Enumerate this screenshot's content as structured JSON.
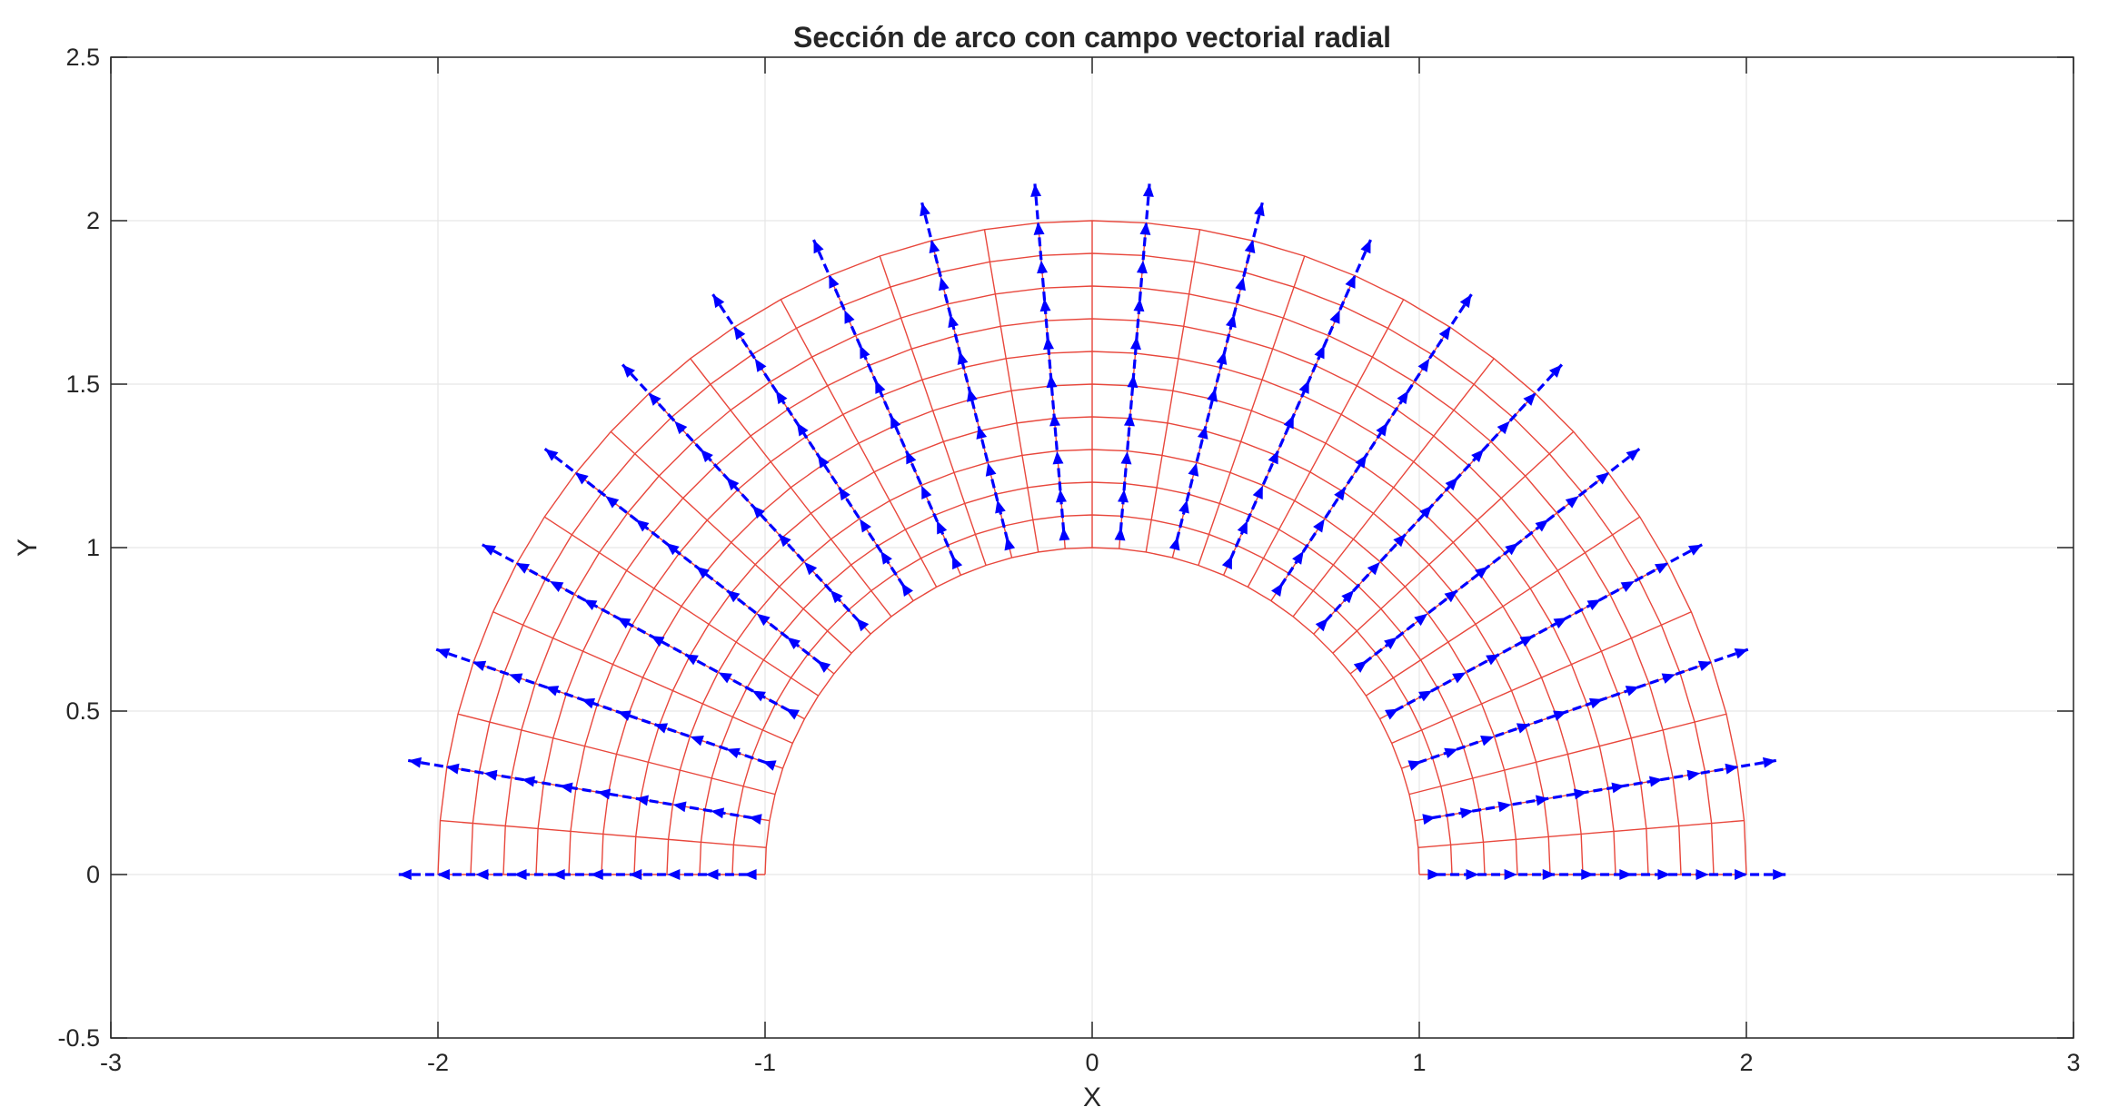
{
  "chart_data": {
    "type": "vector-field",
    "title": "Sección de arco con campo vectorial radial",
    "xlabel": "X",
    "ylabel": "Y",
    "xlim": [
      -3,
      3
    ],
    "ylim": [
      -0.5,
      2.5
    ],
    "xticks": [
      -3,
      -2,
      -1,
      0,
      1,
      2,
      3
    ],
    "yticks": [
      -0.5,
      0,
      0.5,
      1,
      1.5,
      2,
      2.5
    ],
    "xtick_labels": [
      "-3",
      "-2",
      "-1",
      "0",
      "1",
      "2",
      "3"
    ],
    "ytick_labels": [
      "-0.5",
      "0",
      "0.5",
      "1",
      "1.5",
      "2",
      "2.5"
    ],
    "grid": true,
    "mesh": {
      "inner_radius": 1,
      "outer_radius": 2,
      "theta_range_deg": [
        0,
        180
      ],
      "radial_divisions": 10,
      "angular_divisions": 38,
      "color": "#e8473c"
    },
    "vector_field": {
      "description": "radial",
      "color": "#0000ff",
      "directions_deg": [
        0,
        9.47,
        18.95,
        28.42,
        37.89,
        47.37,
        56.84,
        66.32,
        75.79,
        85.26,
        94.74,
        104.21,
        113.68,
        123.16,
        132.63,
        142.11,
        151.58,
        161.05,
        170.53,
        180
      ],
      "radii": [
        1.053,
        1.158,
        1.263,
        1.368,
        1.474,
        1.579,
        1.684,
        1.789,
        1.895,
        2.0
      ],
      "tip_radius": 2.12
    }
  }
}
